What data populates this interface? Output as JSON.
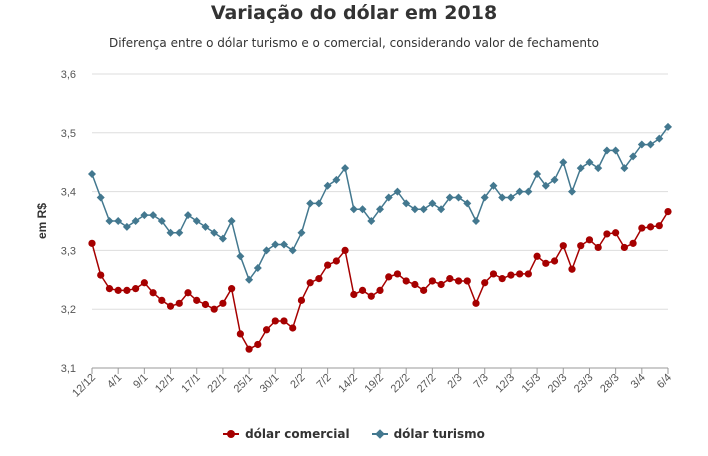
{
  "chart_data": {
    "type": "line",
    "title": "Variação do dólar em 2018",
    "subtitle": "Diferença entre o dólar turismo e o comercial, considerando valor de fechamento",
    "ylabel": "em R$",
    "ylim": [
      3.1,
      3.6
    ],
    "yticks": [
      "3,1",
      "3,2",
      "3,3",
      "3,4",
      "3,5",
      "3,6"
    ],
    "xtick_labels": [
      "12/12",
      "4/1",
      "9/1",
      "12/1",
      "17/1",
      "22/1",
      "25/1",
      "30/1",
      "2/2",
      "7/2",
      "14/2",
      "19/2",
      "22/2",
      "27/2",
      "2/3",
      "7/3",
      "12/3",
      "15/3",
      "20/3",
      "23/3",
      "28/3",
      "3/4",
      "6/4"
    ],
    "legend_position": "bottom",
    "grid": true,
    "series": [
      {
        "name": "dólar comercial",
        "color": "#a60000",
        "marker": "circle",
        "values": [
          3.312,
          3.258,
          3.235,
          3.232,
          3.232,
          3.235,
          3.245,
          3.228,
          3.215,
          3.205,
          3.21,
          3.228,
          3.215,
          3.208,
          3.2,
          3.21,
          3.235,
          3.158,
          3.132,
          3.14,
          3.165,
          3.18,
          3.18,
          3.168,
          3.215,
          3.245,
          3.252,
          3.275,
          3.282,
          3.3,
          3.225,
          3.232,
          3.222,
          3.232,
          3.255,
          3.26,
          3.248,
          3.242,
          3.232,
          3.248,
          3.242,
          3.252,
          3.248,
          3.248,
          3.21,
          3.245,
          3.26,
          3.252,
          3.258,
          3.26,
          3.26,
          3.29,
          3.278,
          3.282,
          3.308,
          3.268,
          3.308,
          3.318,
          3.305,
          3.328,
          3.33,
          3.305,
          3.312,
          3.338,
          3.34,
          3.342,
          3.366
        ]
      },
      {
        "name": "dólar turismo",
        "color": "#43788f",
        "marker": "diamond",
        "values": [
          3.43,
          3.39,
          3.35,
          3.35,
          3.34,
          3.35,
          3.36,
          3.36,
          3.35,
          3.33,
          3.33,
          3.36,
          3.35,
          3.34,
          3.33,
          3.32,
          3.35,
          3.29,
          3.25,
          3.27,
          3.3,
          3.31,
          3.31,
          3.3,
          3.33,
          3.38,
          3.38,
          3.41,
          3.42,
          3.44,
          3.37,
          3.37,
          3.35,
          3.37,
          3.39,
          3.4,
          3.38,
          3.37,
          3.37,
          3.38,
          3.37,
          3.39,
          3.39,
          3.38,
          3.35,
          3.39,
          3.41,
          3.39,
          3.39,
          3.4,
          3.4,
          3.43,
          3.41,
          3.42,
          3.45,
          3.4,
          3.44,
          3.45,
          3.44,
          3.47,
          3.47,
          3.44,
          3.46,
          3.48,
          3.48,
          3.49,
          3.51
        ]
      }
    ]
  }
}
